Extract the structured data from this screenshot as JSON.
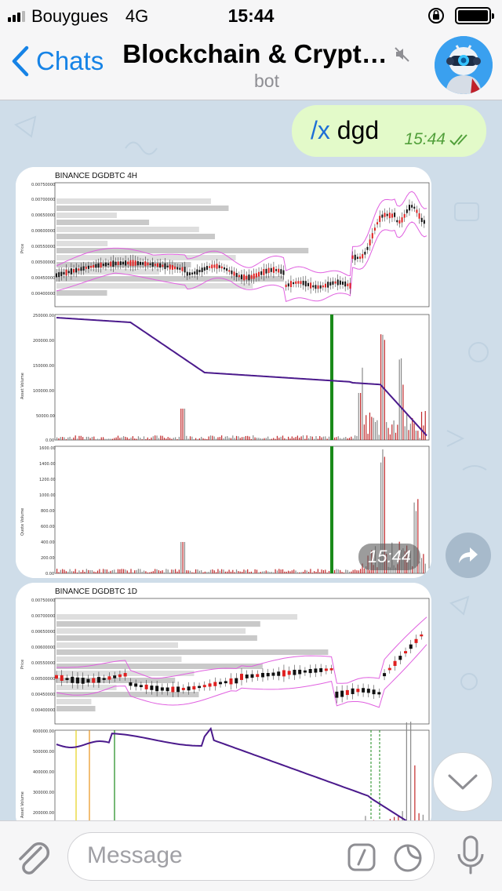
{
  "status_bar": {
    "carrier": "Bouygues",
    "network": "4G",
    "time": "15:44"
  },
  "nav": {
    "back_label": "Chats",
    "title": "Blockchain & Crypt…",
    "subtitle": "bot"
  },
  "messages": {
    "outgoing": {
      "command": "/x",
      "text": "dgd",
      "time": "15:44"
    },
    "chart_4h": {
      "title": "BINANCE DGDBTC 4H",
      "time": "15:44",
      "price_label": "Price",
      "asset_volume_label": "Asset Volume",
      "quote_volume_label": "Quote Volume",
      "price_ticks": [
        "0.00750000",
        "0.00700000",
        "0.00650000",
        "0.00600000",
        "0.00550000",
        "0.00500000",
        "0.00450000",
        "0.00400000"
      ],
      "asset_ticks": [
        "250000.00",
        "200000.00",
        "150000.00",
        "100000.00",
        "50000.00",
        "0.00"
      ],
      "quote_ticks": [
        "1600.00",
        "1400.00",
        "1200.00",
        "1000.00",
        "800.00",
        "600.00",
        "400.00",
        "200.00",
        "0.00"
      ]
    },
    "chart_1d": {
      "title": "BINANCE DGDBTC 1D",
      "price_label": "Price",
      "asset_volume_label": "Asset Volume",
      "price_ticks": [
        "0.00750000",
        "0.00700000",
        "0.00650000",
        "0.00600000",
        "0.00550000",
        "0.00500000",
        "0.00450000",
        "0.00400000"
      ],
      "asset_ticks": [
        "600000.00",
        "500000.00",
        "400000.00",
        "300000.00",
        "200000.00"
      ]
    }
  },
  "input": {
    "placeholder": "Message"
  },
  "colors": {
    "accent": "#1683e6",
    "outgoing_bubble": "#e3fac9",
    "outgoing_meta": "#52a03b",
    "chat_background": "#cfdde9",
    "volume_line": "#4b1a8c",
    "bollinger": "#e060e0",
    "marker_green": "#1a8a1a"
  },
  "icons": {
    "back": "chevron-left-icon",
    "mute": "muted-speaker-icon",
    "read": "double-check-icon",
    "share": "share-arrow-icon",
    "scroll_down": "chevron-down-icon",
    "attach": "paperclip-icon",
    "commands": "slash-command-icon",
    "stickers": "sticker-icon",
    "mic": "microphone-icon"
  }
}
